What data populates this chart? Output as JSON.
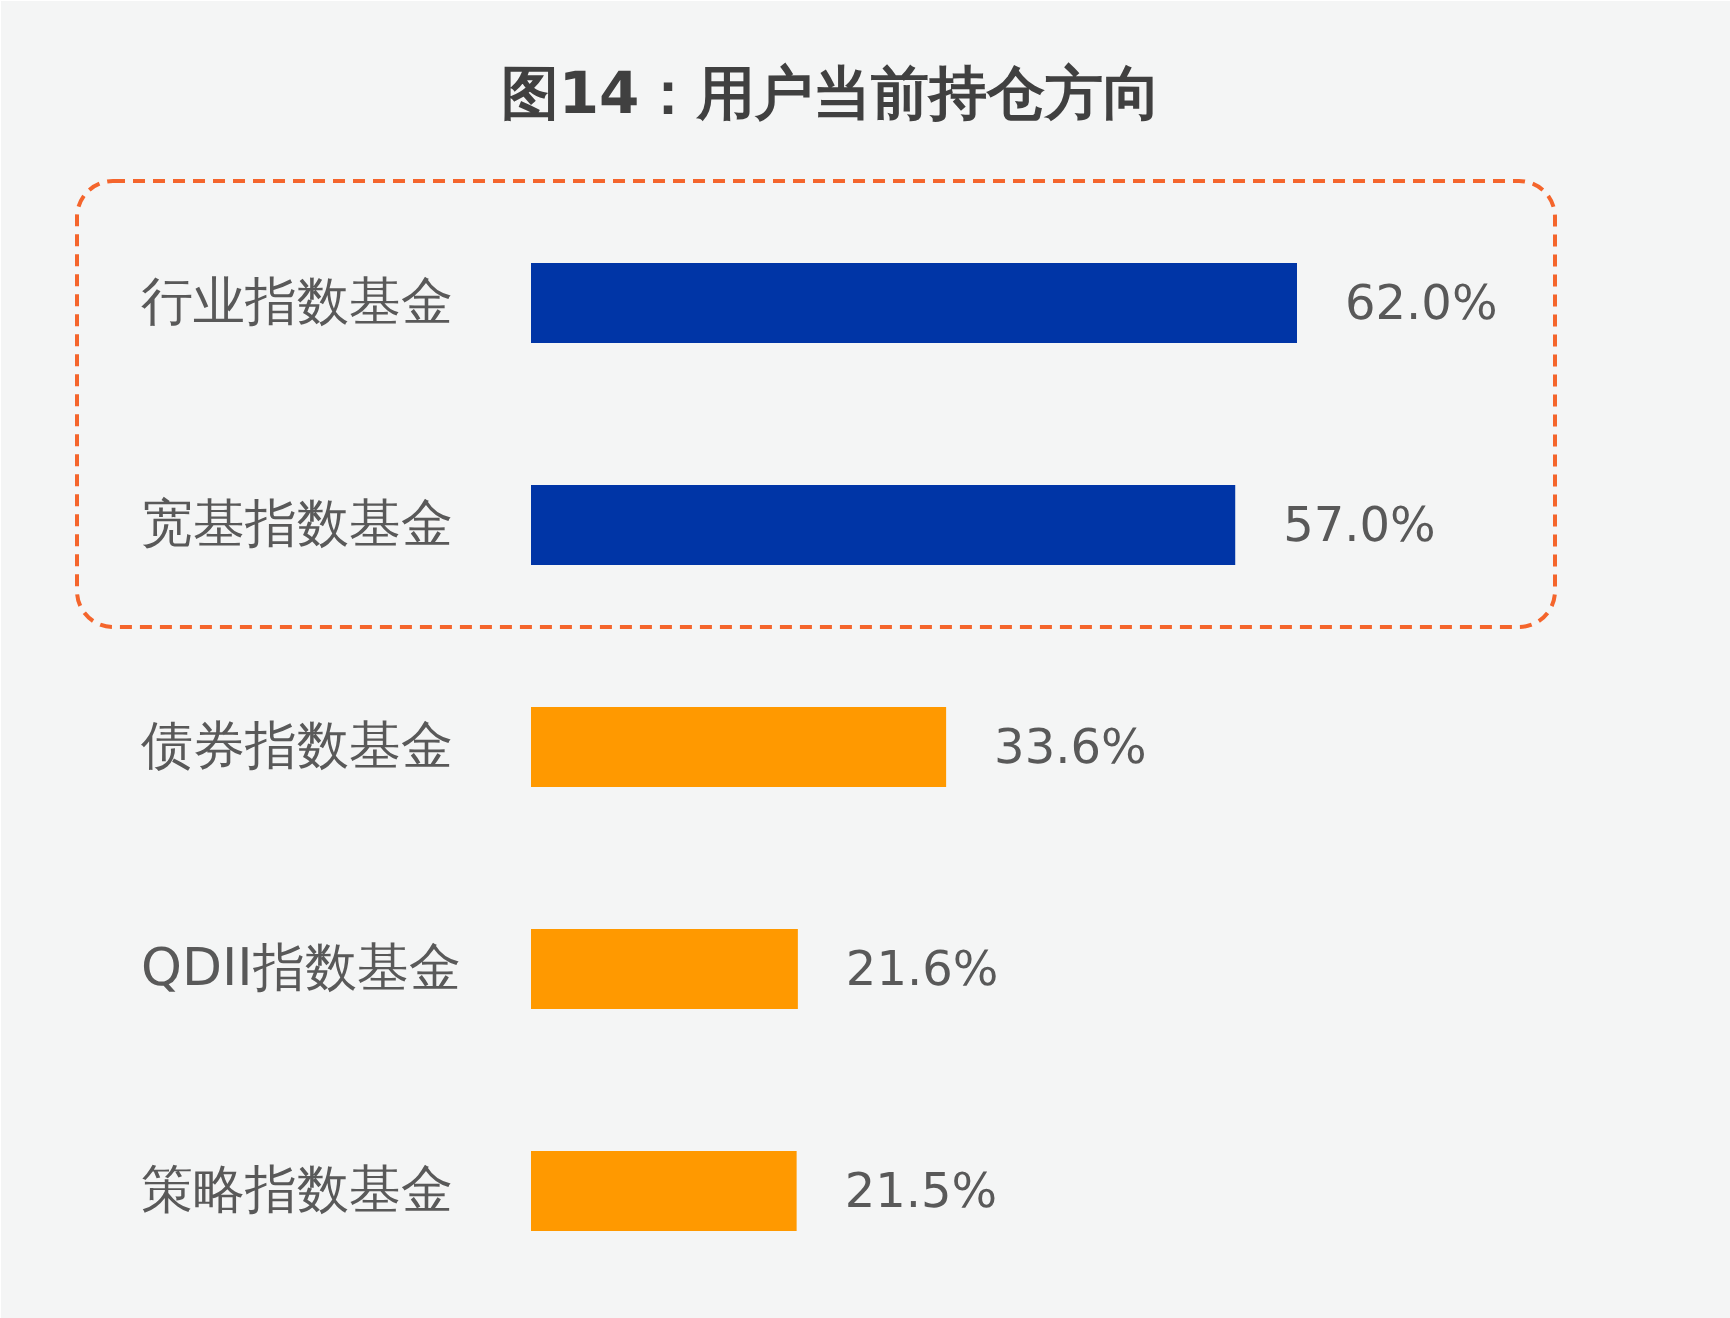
{
  "chart_data": {
    "type": "bar",
    "orientation": "horizontal",
    "title": "图14：用户当前持仓方向",
    "categories": [
      "行业指数基金",
      "宽基指数基金",
      "债券指数基金",
      "QDII指数基金",
      "策略指数基金"
    ],
    "values": [
      62.0,
      57.0,
      33.6,
      21.6,
      21.5
    ],
    "value_labels": [
      "62.0%",
      "57.0%",
      "33.6%",
      "21.6%",
      "21.5%"
    ],
    "colors": [
      "#0035a6",
      "#0035a6",
      "#ff9900",
      "#ff9900",
      "#ff9900"
    ],
    "tick_labels": "y"
  }
}
